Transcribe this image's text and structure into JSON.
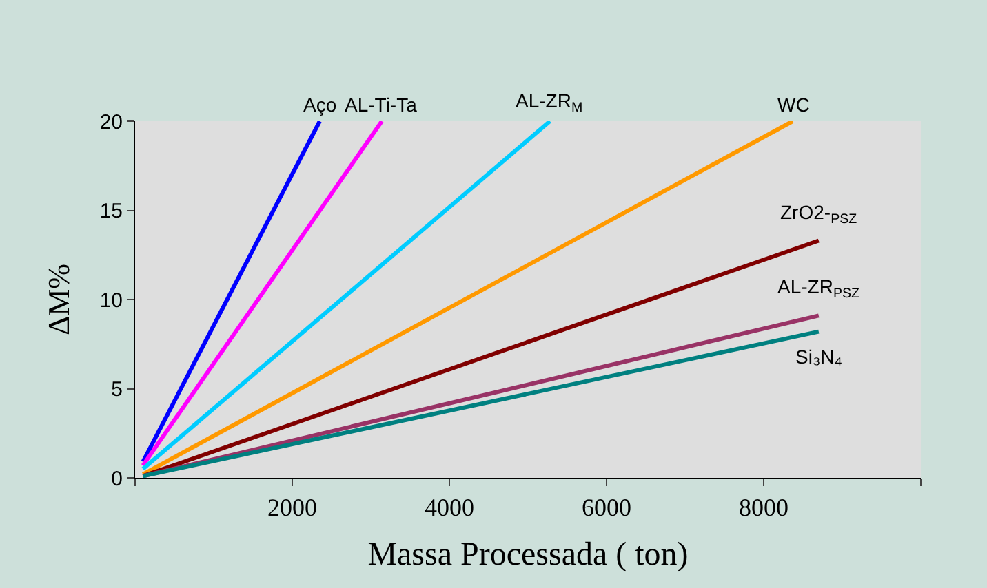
{
  "chart_data": {
    "type": "line",
    "xlabel": "Massa Processada ( ton)",
    "ylabel": "ΔM%",
    "xlim": [
      0,
      10000
    ],
    "xticks": [
      {
        "value": 0,
        "label": null
      },
      2000,
      4000,
      6000,
      8000,
      {
        "value": 10000,
        "label": null
      }
    ],
    "ylim": [
      0,
      20
    ],
    "yticks": [
      0,
      5,
      10,
      15,
      20
    ],
    "grid": false,
    "legend": false,
    "marker": "none",
    "line_style": "solid",
    "series": [
      {
        "name": "Aço",
        "color": "#0000ff",
        "x": [
          100,
          2350
        ],
        "values": [
          0.9,
          20
        ]
      },
      {
        "name": "AL-Ti-Ta",
        "color": "#ff00ff",
        "x": [
          100,
          3140
        ],
        "values": [
          0.7,
          20
        ]
      },
      {
        "name": "AL-ZR$_{M}$",
        "color": "#00ccff",
        "x": [
          100,
          5280
        ],
        "values": [
          0.5,
          20
        ]
      },
      {
        "name": "WC",
        "color": "#ff9900",
        "x": [
          100,
          8370
        ],
        "values": [
          0.2,
          20
        ]
      },
      {
        "name": "ZrO2-$_{PSZ}$",
        "color": "#800000",
        "x": [
          100,
          8700
        ],
        "values": [
          0.1,
          13.3
        ]
      },
      {
        "name": "AL-ZR$_{PSZ}$",
        "color": "#993366",
        "x": [
          100,
          8700
        ],
        "values": [
          0.1,
          9.1
        ]
      },
      {
        "name": "Si₃N₄",
        "color": "#008080",
        "x": [
          100,
          8700
        ],
        "values": [
          0.1,
          8.2
        ]
      }
    ]
  }
}
